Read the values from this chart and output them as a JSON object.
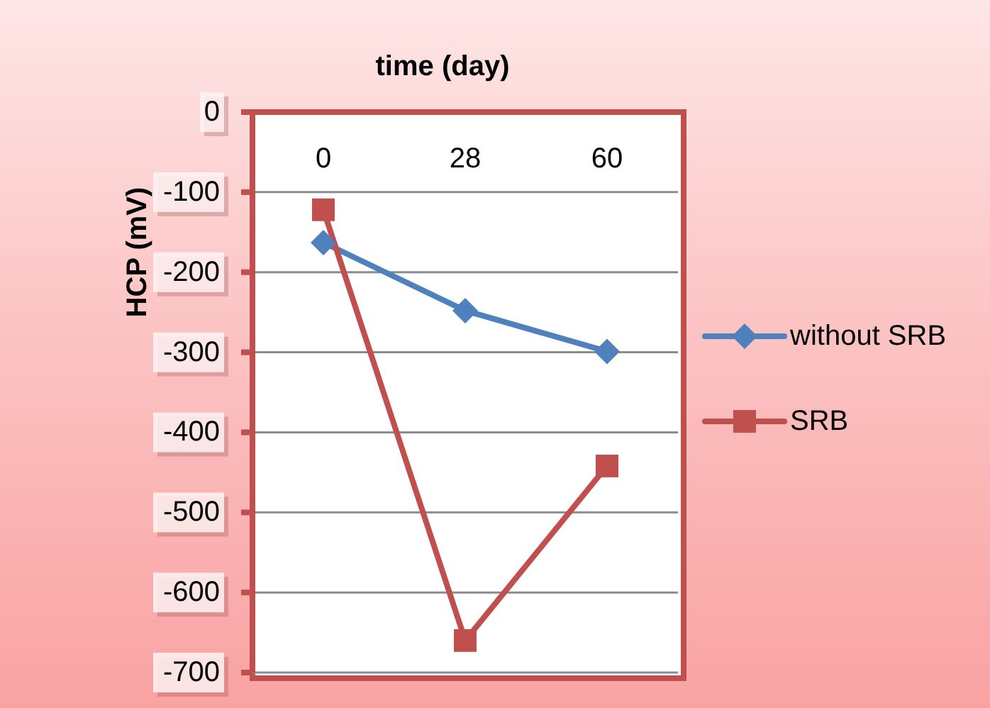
{
  "chart_data": {
    "type": "line",
    "xlabel": "time (day)",
    "ylabel": "HCP (mV)",
    "categories": [
      "0",
      "28",
      "60"
    ],
    "series": [
      {
        "name": "without SRB",
        "color": "#4f81bd",
        "marker": "diamond",
        "values": [
          -163,
          -248,
          -299
        ]
      },
      {
        "name": "SRB",
        "color": "#c0504d",
        "marker": "square",
        "values": [
          -122,
          -660,
          -442
        ]
      }
    ],
    "ylim": [
      -700,
      0
    ],
    "yticks": [
      0,
      -100,
      -200,
      -300,
      -400,
      -500,
      -600,
      -700
    ],
    "grid": "y",
    "legend": "right",
    "line_style": "solid"
  }
}
